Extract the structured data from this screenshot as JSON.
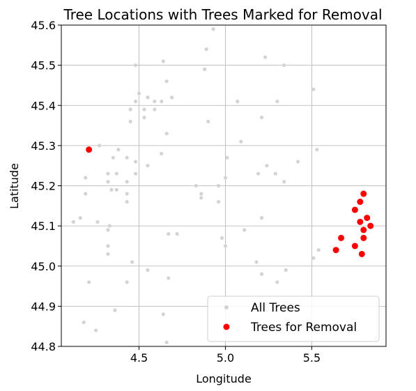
{
  "chart_data": {
    "type": "scatter",
    "title": "Tree Locations with Trees Marked for Removal",
    "xlabel": "Longitude",
    "ylabel": "Latitude",
    "xlim": [
      4.05,
      5.93
    ],
    "ylim": [
      44.8,
      45.6
    ],
    "xticks": [
      4.5,
      5.0,
      5.5
    ],
    "yticks": [
      44.8,
      44.9,
      45.0,
      45.1,
      45.2,
      45.3,
      45.4,
      45.5,
      45.6
    ],
    "xtick_labels": [
      "4.5",
      "5.0",
      "5.5"
    ],
    "ytick_labels": [
      "44.8",
      "44.9",
      "45.0",
      "45.1",
      "45.2",
      "45.3",
      "45.4",
      "45.5",
      "45.6"
    ],
    "grid": true,
    "legend_position": "lower-right",
    "series": [
      {
        "name": "All Trees",
        "color": "#d3d3d3",
        "marker": "small-dot",
        "points": [
          [
            4.93,
            45.59
          ],
          [
            4.89,
            45.54
          ],
          [
            4.64,
            45.51
          ],
          [
            5.23,
            45.52
          ],
          [
            4.48,
            45.5
          ],
          [
            4.88,
            45.49
          ],
          [
            5.34,
            45.5
          ],
          [
            5.51,
            45.44
          ],
          [
            4.66,
            45.46
          ],
          [
            4.5,
            45.43
          ],
          [
            4.55,
            45.42
          ],
          [
            4.69,
            45.42
          ],
          [
            4.48,
            45.41
          ],
          [
            4.59,
            45.41
          ],
          [
            4.63,
            45.41
          ],
          [
            5.07,
            45.41
          ],
          [
            5.3,
            45.41
          ],
          [
            4.45,
            45.39
          ],
          [
            4.53,
            45.39
          ],
          [
            4.59,
            45.39
          ],
          [
            4.53,
            45.37
          ],
          [
            5.21,
            45.37
          ],
          [
            4.9,
            45.36
          ],
          [
            4.45,
            45.36
          ],
          [
            4.66,
            45.33
          ],
          [
            5.09,
            45.31
          ],
          [
            4.27,
            45.3
          ],
          [
            5.53,
            45.29
          ],
          [
            4.38,
            45.29
          ],
          [
            4.63,
            45.28
          ],
          [
            5.01,
            45.27
          ],
          [
            4.35,
            45.27
          ],
          [
            4.43,
            45.27
          ],
          [
            4.48,
            45.26
          ],
          [
            5.42,
            45.26
          ],
          [
            5.24,
            45.25
          ],
          [
            4.55,
            45.25
          ],
          [
            4.32,
            45.23
          ],
          [
            4.37,
            45.23
          ],
          [
            4.48,
            45.23
          ],
          [
            5.19,
            45.23
          ],
          [
            5.29,
            45.23
          ],
          [
            4.19,
            45.22
          ],
          [
            4.43,
            45.21
          ],
          [
            5.0,
            45.22
          ],
          [
            5.34,
            45.21
          ],
          [
            4.32,
            45.21
          ],
          [
            4.83,
            45.2
          ],
          [
            4.96,
            45.2
          ],
          [
            4.34,
            45.19
          ],
          [
            4.37,
            45.19
          ],
          [
            4.86,
            45.18
          ],
          [
            4.19,
            45.18
          ],
          [
            4.43,
            45.18
          ],
          [
            4.43,
            45.16
          ],
          [
            4.86,
            45.17
          ],
          [
            4.96,
            45.16
          ],
          [
            4.16,
            45.12
          ],
          [
            5.21,
            45.12
          ],
          [
            4.12,
            45.11
          ],
          [
            4.26,
            45.11
          ],
          [
            4.33,
            45.1
          ],
          [
            4.32,
            45.09
          ],
          [
            5.11,
            45.09
          ],
          [
            4.67,
            45.08
          ],
          [
            4.72,
            45.08
          ],
          [
            4.98,
            45.07
          ],
          [
            4.32,
            45.05
          ],
          [
            5.0,
            45.05
          ],
          [
            4.32,
            45.03
          ],
          [
            5.54,
            45.04
          ],
          [
            5.51,
            45.02
          ],
          [
            4.46,
            45.01
          ],
          [
            5.18,
            45.01
          ],
          [
            4.55,
            44.99
          ],
          [
            5.35,
            44.99
          ],
          [
            5.21,
            44.98
          ],
          [
            4.67,
            44.97
          ],
          [
            4.21,
            44.96
          ],
          [
            4.43,
            44.96
          ],
          [
            5.3,
            44.96
          ],
          [
            4.36,
            44.89
          ],
          [
            4.64,
            44.88
          ],
          [
            4.18,
            44.86
          ],
          [
            4.25,
            44.84
          ],
          [
            5.07,
            44.84
          ],
          [
            4.66,
            44.81
          ],
          [
            5.87,
            44.82
          ]
        ]
      },
      {
        "name": "Trees for Removal",
        "color": "#ff0000",
        "marker": "dot",
        "points": [
          [
            4.21,
            45.29
          ],
          [
            5.8,
            45.18
          ],
          [
            5.78,
            45.16
          ],
          [
            5.75,
            45.14
          ],
          [
            5.82,
            45.12
          ],
          [
            5.78,
            45.11
          ],
          [
            5.84,
            45.1
          ],
          [
            5.8,
            45.09
          ],
          [
            5.67,
            45.07
          ],
          [
            5.8,
            45.07
          ],
          [
            5.75,
            45.05
          ],
          [
            5.64,
            45.04
          ],
          [
            5.79,
            45.03
          ]
        ]
      }
    ]
  }
}
